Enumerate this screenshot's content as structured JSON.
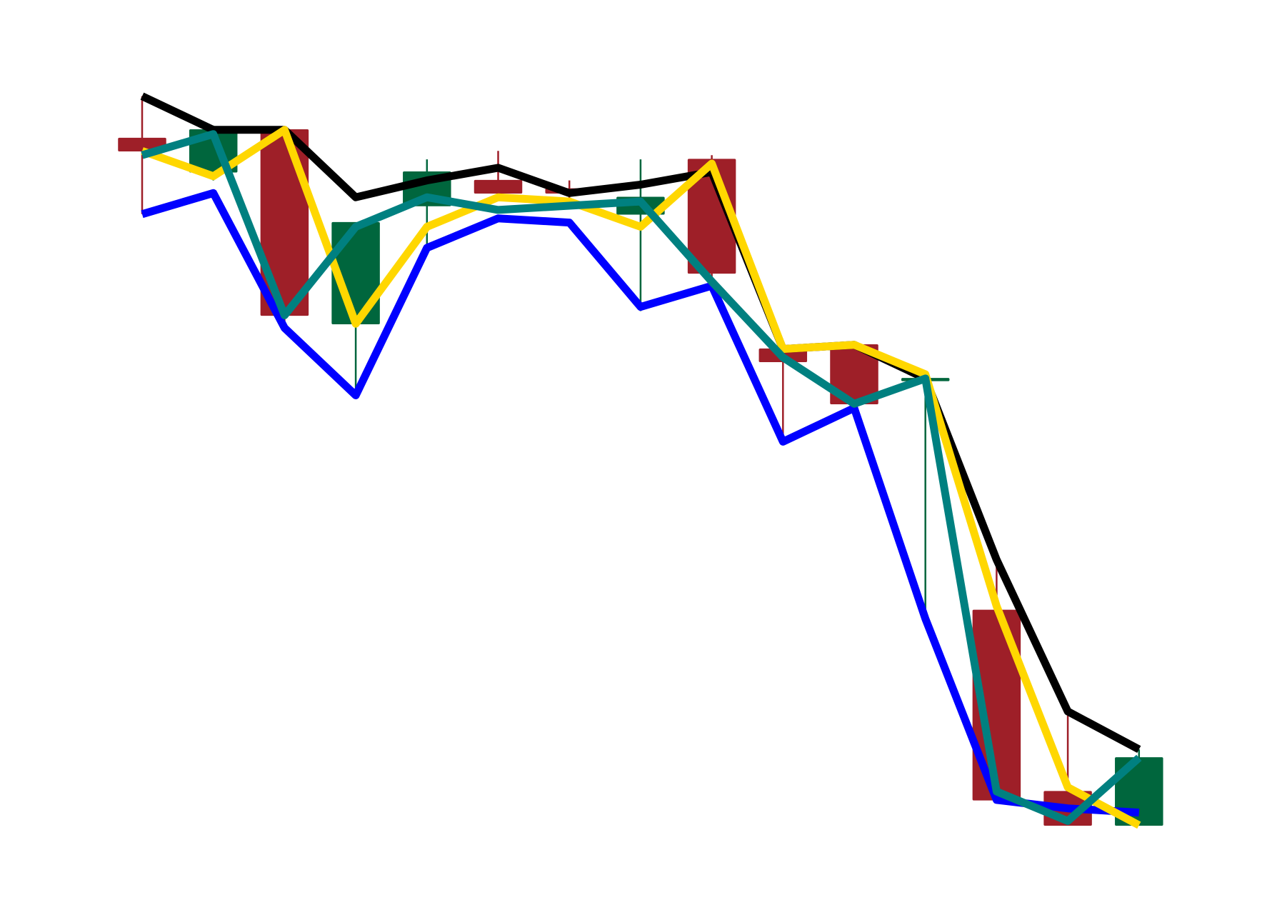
{
  "chart_data": {
    "type": "candlestick",
    "title": "",
    "xlabel": "",
    "ylabel": "",
    "axes_visible": false,
    "grid": false,
    "legend": "none",
    "ylim": [
      0,
      100
    ],
    "colors": {
      "up": "#00663d",
      "down": "#9e1f28",
      "upper_line": "#000000",
      "lower_line": "#0000ff",
      "close_line": "#ffd700",
      "open_line": "#008080"
    },
    "candles": [
      {
        "open": 88,
        "close": 86.5,
        "high": 93,
        "low": 79
      },
      {
        "open": 84,
        "close": 89,
        "high": 89.5,
        "low": 83
      },
      {
        "open": 89,
        "close": 67,
        "high": 89,
        "low": 65.5
      },
      {
        "open": 66,
        "close": 78,
        "high": 78,
        "low": 57.5
      },
      {
        "open": 80,
        "close": 84,
        "high": 85.5,
        "low": 75
      },
      {
        "open": 83,
        "close": 81.5,
        "high": 86.5,
        "low": 81
      },
      {
        "open": 82,
        "close": 81.5,
        "high": 83,
        "low": 80.5
      },
      {
        "open": 79,
        "close": 81,
        "high": 85.5,
        "low": 67.5
      },
      {
        "open": 85.5,
        "close": 72,
        "high": 86,
        "low": 70.5
      },
      {
        "open": 63,
        "close": 61.5,
        "high": 63,
        "low": 52
      },
      {
        "open": 63.5,
        "close": 56.5,
        "high": 63.5,
        "low": 56
      },
      {
        "open": 59.5,
        "close": 59.5,
        "high": 59.5,
        "low": 31
      },
      {
        "open": 32,
        "close": 9.5,
        "high": 38,
        "low": 9.5
      },
      {
        "open": 10.5,
        "close": 6.5,
        "high": 19.5,
        "low": 6.5
      },
      {
        "open": 6.5,
        "close": 14.5,
        "high": 15.5,
        "low": 6.5
      }
    ],
    "series": [
      {
        "values": [
          93,
          89,
          89,
          81,
          83,
          84.5,
          81.5,
          82.5,
          84,
          63,
          63.5,
          59.5,
          38,
          20,
          15.5
        ]
      },
      {
        "values": [
          79,
          81.5,
          65.5,
          57.5,
          75,
          78.5,
          78,
          68,
          70.5,
          52,
          56,
          31,
          9.5,
          8.5,
          8
        ]
      },
      {
        "values": [
          86.5,
          83.5,
          89,
          66,
          77.5,
          81,
          80.5,
          77.5,
          85,
          63,
          63.5,
          60,
          32.5,
          11,
          6.5
        ]
      },
      {
        "values": [
          86,
          88.5,
          67,
          77.5,
          81,
          79.5,
          80,
          80.5,
          71,
          62,
          56.5,
          59.5,
          10.5,
          7,
          14.5
        ]
      }
    ]
  }
}
